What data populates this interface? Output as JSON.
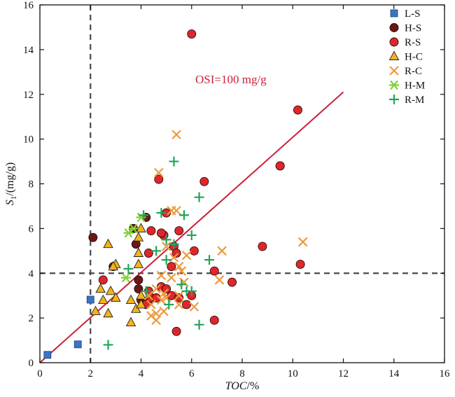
{
  "chart_data": {
    "type": "scatter",
    "xlabel": {
      "italic": "TOC",
      "rest": "/%"
    },
    "ylabel": {
      "italic": "S",
      "sub": "1",
      "rest": "/(mg/g)"
    },
    "xlim": [
      0,
      16
    ],
    "ylim": [
      0,
      16
    ],
    "xticks": [
      0,
      2,
      4,
      6,
      8,
      10,
      12,
      14,
      16
    ],
    "yticks": [
      0,
      2,
      4,
      6,
      8,
      10,
      12,
      14,
      16
    ],
    "grid": false,
    "legend_position": "top-right",
    "reference_lines": {
      "vertical_x": 2,
      "horizontal_y": 4
    },
    "trendline": {
      "label": "OSI=100 mg/g",
      "from": [
        0,
        0
      ],
      "to": [
        12,
        12.1
      ],
      "color": "#cc1f39"
    },
    "series": [
      {
        "name": "L-S",
        "marker": "square",
        "color": "#3a74c4",
        "points": [
          [
            0.3,
            0.35
          ],
          [
            1.5,
            0.82
          ],
          [
            2.0,
            2.82
          ]
        ]
      },
      {
        "name": "H-S",
        "marker": "circle",
        "color": "#6b1717",
        "points": [
          [
            2.1,
            5.6
          ],
          [
            2.9,
            4.3
          ],
          [
            3.7,
            6.0
          ],
          [
            3.8,
            5.3
          ],
          [
            3.9,
            3.7
          ],
          [
            3.9,
            3.3
          ],
          [
            4.0,
            2.8
          ],
          [
            4.2,
            6.5
          ],
          [
            4.3,
            2.8
          ],
          [
            9.5,
            8.8
          ]
        ]
      },
      {
        "name": "R-S",
        "marker": "circle",
        "color": "#e0262c",
        "points": [
          [
            6.0,
            14.7
          ],
          [
            10.2,
            11.3
          ],
          [
            9.5,
            8.8
          ],
          [
            4.7,
            8.2
          ],
          [
            6.5,
            8.1
          ],
          [
            5.0,
            6.7
          ],
          [
            4.9,
            5.7
          ],
          [
            5.5,
            5.9
          ],
          [
            4.4,
            5.9
          ],
          [
            4.3,
            4.9
          ],
          [
            5.3,
            5.2
          ],
          [
            6.1,
            5.0
          ],
          [
            5.4,
            4.9
          ],
          [
            4.8,
            5.8
          ],
          [
            8.8,
            5.2
          ],
          [
            5.2,
            4.3
          ],
          [
            6.9,
            4.1
          ],
          [
            7.6,
            3.6
          ],
          [
            10.3,
            4.4
          ],
          [
            2.5,
            3.7
          ],
          [
            4.3,
            3.2
          ],
          [
            4.8,
            3.4
          ],
          [
            5.0,
            3.3
          ],
          [
            5.2,
            3.0
          ],
          [
            4.4,
            2.9
          ],
          [
            4.6,
            2.9
          ],
          [
            5.5,
            2.9
          ],
          [
            6.0,
            3.0
          ],
          [
            5.8,
            2.6
          ],
          [
            6.9,
            1.9
          ],
          [
            5.4,
            1.4
          ],
          [
            4.2,
            2.6
          ]
        ]
      },
      {
        "name": "H-C",
        "marker": "triangle",
        "color": "#f2b418",
        "points": [
          [
            2.7,
            5.3
          ],
          [
            3.0,
            4.4
          ],
          [
            3.9,
            5.6
          ],
          [
            4.0,
            6.0
          ],
          [
            3.9,
            4.9
          ],
          [
            3.9,
            4.4
          ],
          [
            2.9,
            4.3
          ],
          [
            2.4,
            3.3
          ],
          [
            2.5,
            2.8
          ],
          [
            2.8,
            3.2
          ],
          [
            3.0,
            2.9
          ],
          [
            3.6,
            2.8
          ],
          [
            3.8,
            2.4
          ],
          [
            4.0,
            3.0
          ],
          [
            2.2,
            2.3
          ],
          [
            2.7,
            2.2
          ],
          [
            3.6,
            1.8
          ],
          [
            4.0,
            2.6
          ]
        ]
      },
      {
        "name": "R-C",
        "marker": "x",
        "color": "#ef9a3e",
        "points": [
          [
            5.4,
            10.2
          ],
          [
            4.7,
            8.5
          ],
          [
            5.2,
            6.8
          ],
          [
            5.4,
            6.8
          ],
          [
            7.2,
            5.0
          ],
          [
            10.4,
            5.4
          ],
          [
            5.0,
            5.2
          ],
          [
            5.3,
            4.7
          ],
          [
            5.8,
            4.8
          ],
          [
            5.5,
            4.3
          ],
          [
            5.6,
            4.1
          ],
          [
            4.8,
            3.9
          ],
          [
            5.2,
            3.8
          ],
          [
            7.1,
            3.7
          ],
          [
            5.7,
            3.6
          ],
          [
            4.6,
            3.3
          ],
          [
            4.3,
            3.0
          ],
          [
            4.9,
            3.1
          ],
          [
            5.5,
            3.0
          ],
          [
            5.0,
            2.9
          ],
          [
            4.4,
            2.6
          ],
          [
            4.8,
            2.8
          ],
          [
            5.5,
            2.6
          ],
          [
            6.1,
            2.5
          ],
          [
            4.4,
            2.1
          ],
          [
            4.6,
            2.2
          ],
          [
            4.9,
            2.3
          ],
          [
            4.6,
            1.9
          ]
        ]
      },
      {
        "name": "H-M",
        "marker": "asterisk",
        "color": "#82d138",
        "points": [
          [
            3.7,
            6.0
          ],
          [
            3.5,
            5.8
          ],
          [
            3.4,
            3.8
          ],
          [
            4.0,
            6.5
          ]
        ]
      },
      {
        "name": "R-M",
        "marker": "plus",
        "color": "#24a35c",
        "points": [
          [
            5.3,
            9.0
          ],
          [
            6.3,
            7.4
          ],
          [
            4.1,
            6.6
          ],
          [
            4.8,
            6.7
          ],
          [
            5.7,
            6.6
          ],
          [
            6.0,
            5.7
          ],
          [
            5.0,
            5.5
          ],
          [
            4.6,
            5.0
          ],
          [
            5.3,
            5.3
          ],
          [
            6.7,
            4.6
          ],
          [
            5.0,
            4.6
          ],
          [
            3.5,
            4.2
          ],
          [
            6.0,
            3.2
          ],
          [
            5.6,
            3.5
          ],
          [
            5.8,
            3.2
          ],
          [
            5.1,
            2.6
          ],
          [
            4.2,
            3.2
          ],
          [
            6.3,
            1.7
          ],
          [
            2.7,
            0.8
          ]
        ]
      }
    ]
  }
}
